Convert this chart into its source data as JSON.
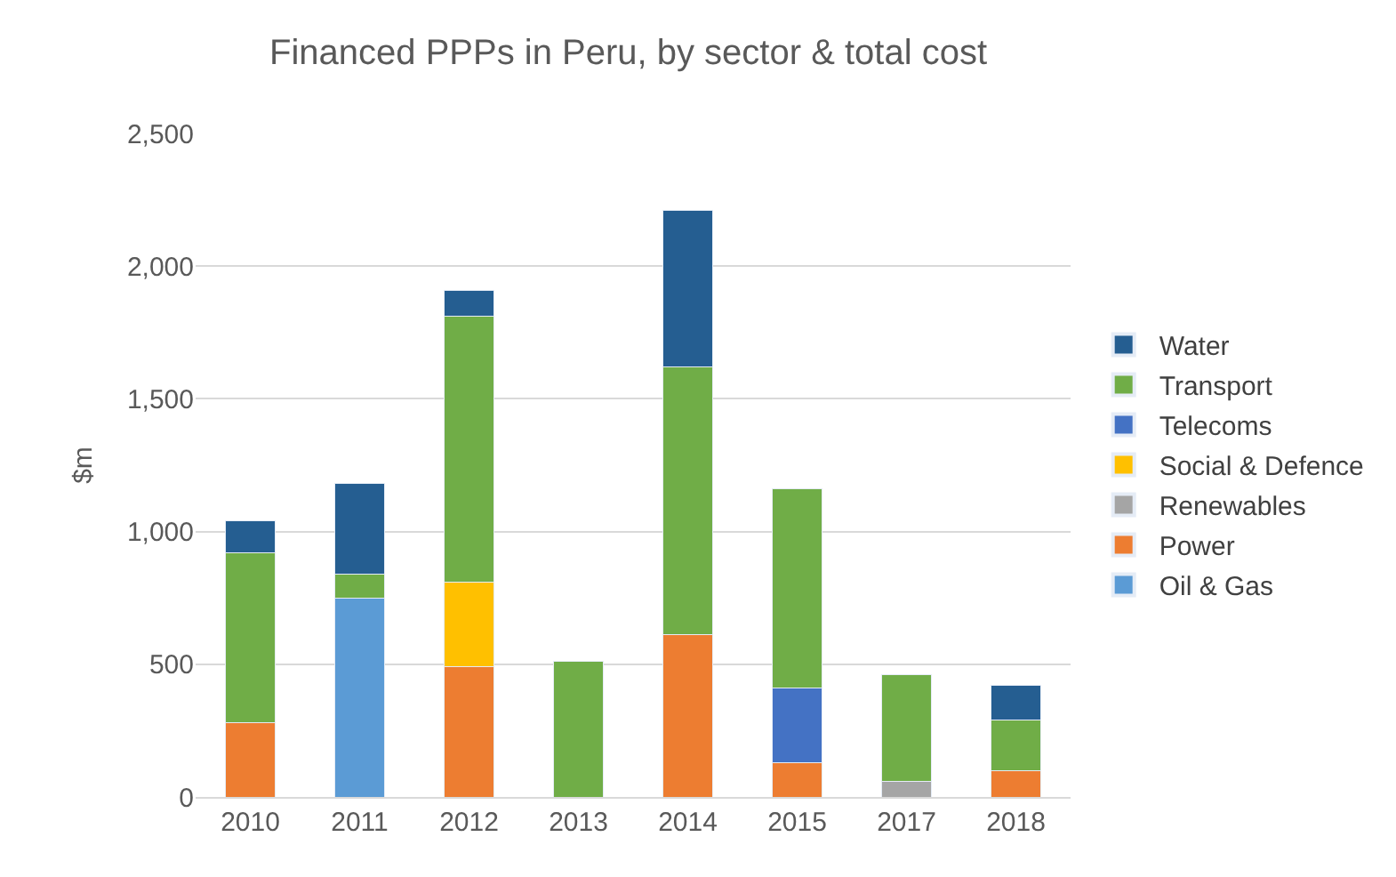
{
  "chart_data": {
    "type": "bar",
    "title": "Financed PPPs in Peru, by sector & total cost",
    "ylabel": "$m",
    "categories": [
      "2010",
      "2011",
      "2012",
      "2013",
      "2014",
      "2015",
      "2017",
      "2018"
    ],
    "stacked": true,
    "ylim": [
      0,
      2500
    ],
    "yticks": [
      {
        "value": 0,
        "label": "0"
      },
      {
        "value": 500,
        "label": "500"
      },
      {
        "value": 1000,
        "label": "1,000"
      },
      {
        "value": 1500,
        "label": "1,500"
      },
      {
        "value": 2000,
        "label": "2,000"
      },
      {
        "value": 2500,
        "label": "2,500"
      }
    ],
    "grid": "y",
    "legend": "right",
    "series": [
      {
        "name": "Oil & Gas",
        "color": "#5b9bd5",
        "values": [
          null,
          750,
          null,
          null,
          null,
          null,
          null,
          null
        ]
      },
      {
        "name": "Power",
        "color": "#ed7d31",
        "values": [
          280,
          null,
          490,
          null,
          610,
          130,
          null,
          100
        ]
      },
      {
        "name": "Renewables",
        "color": "#a5a5a5",
        "values": [
          null,
          null,
          null,
          null,
          null,
          null,
          60,
          null
        ]
      },
      {
        "name": "Social & Defence",
        "color": "#ffc000",
        "values": [
          null,
          null,
          320,
          null,
          null,
          null,
          null,
          null
        ]
      },
      {
        "name": "Telecoms",
        "color": "#4472c4",
        "values": [
          null,
          null,
          null,
          null,
          null,
          280,
          null,
          null
        ]
      },
      {
        "name": "Transport",
        "color": "#70ad47",
        "values": [
          640,
          90,
          1000,
          510,
          1010,
          750,
          400,
          190
        ]
      },
      {
        "name": "Water",
        "color": "#255e91",
        "values": [
          120,
          340,
          100,
          null,
          590,
          null,
          null,
          130
        ]
      }
    ]
  }
}
